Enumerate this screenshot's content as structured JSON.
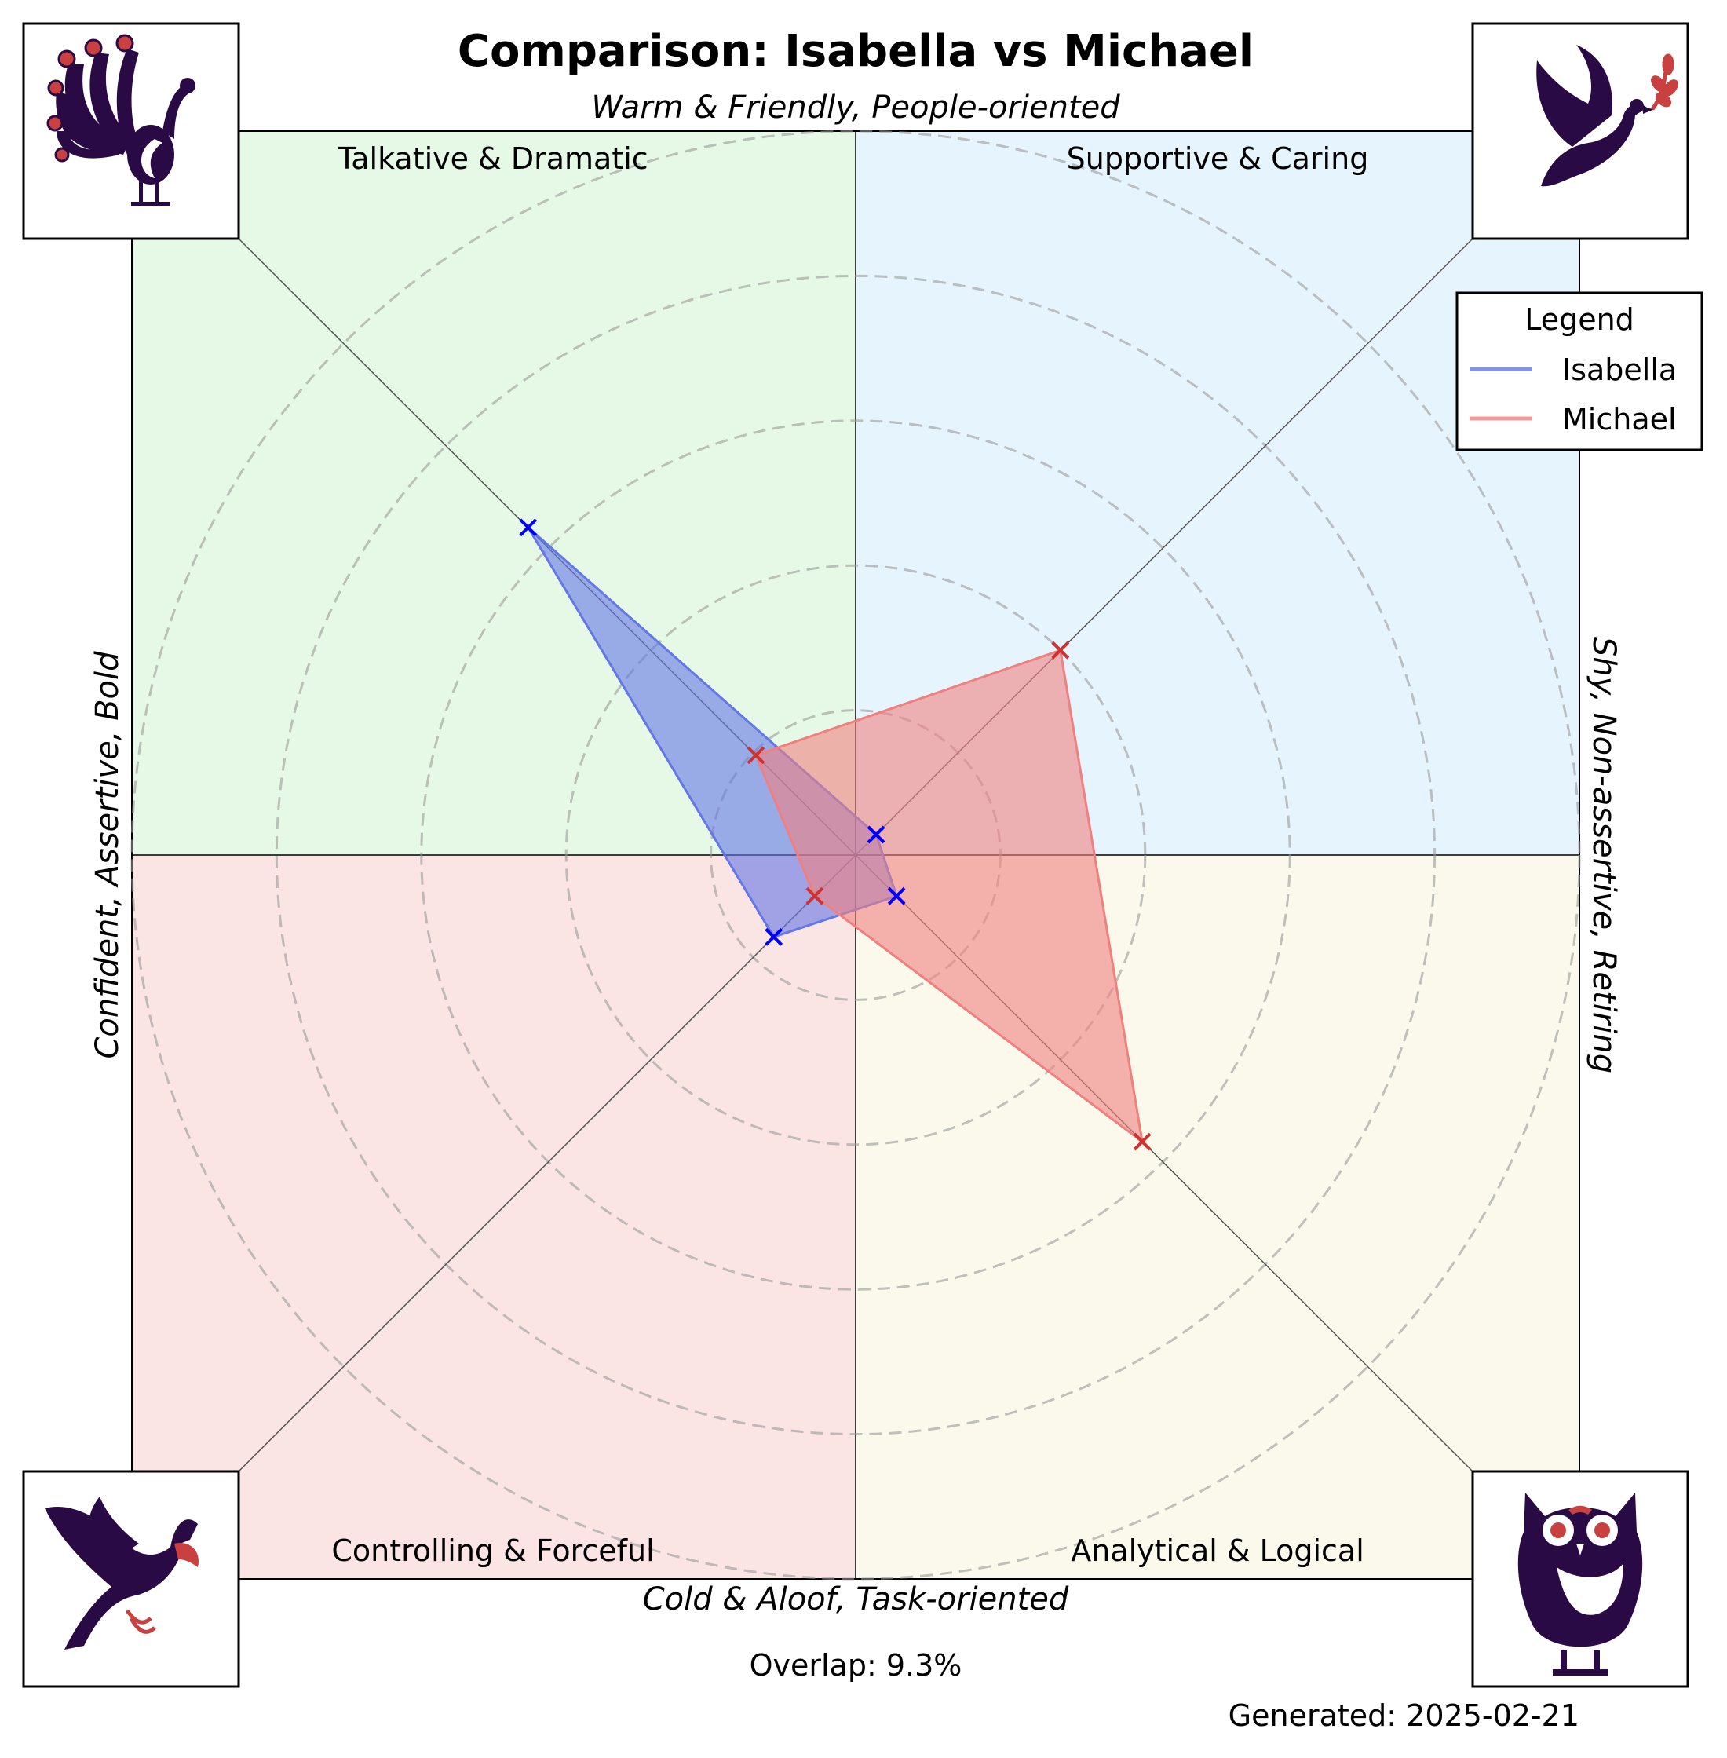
{
  "chart_data": {
    "type": "radar",
    "title": "Comparison: Isabella vs Michael",
    "axis_labels": {
      "top": "Warm & Friendly, People-oriented",
      "bottom": "Cold & Aloof, Task-oriented",
      "left": "Confident, Assertive, Bold",
      "right": "Shy, Non-assertive, Retiring"
    },
    "quadrants": [
      {
        "id": "top-left",
        "label": "Talkative & Dramatic",
        "color": "#e6f9e6",
        "icon": "peacock-icon"
      },
      {
        "id": "top-right",
        "label": "Supportive & Caring",
        "color": "#e6f4fd",
        "icon": "dove-icon"
      },
      {
        "id": "bottom-left",
        "label": "Controlling & Forceful",
        "color": "#fae4e4",
        "icon": "eagle-icon"
      },
      {
        "id": "bottom-right",
        "label": "Analytical & Logical",
        "color": "#fbf9eb",
        "icon": "owl-icon"
      }
    ],
    "directions": [
      "top-left",
      "top-right",
      "bottom-right",
      "bottom-left"
    ],
    "range": [
      0,
      100
    ],
    "grid_rings": [
      20,
      40,
      60,
      80,
      100
    ],
    "series": [
      {
        "name": "Isabella",
        "color": "#6477e6",
        "marker_color": "#0000ff",
        "values": [
          64,
          4,
          8,
          16
        ]
      },
      {
        "name": "Michael",
        "color": "#f08080",
        "marker_color": "#cc3333",
        "values": [
          19.5,
          40,
          56,
          8
        ]
      }
    ],
    "legend": {
      "title": "Legend",
      "position": "top-right"
    },
    "overlap_text": "Overlap: 9.3%",
    "generated_text": "Generated: 2025-02-21"
  }
}
